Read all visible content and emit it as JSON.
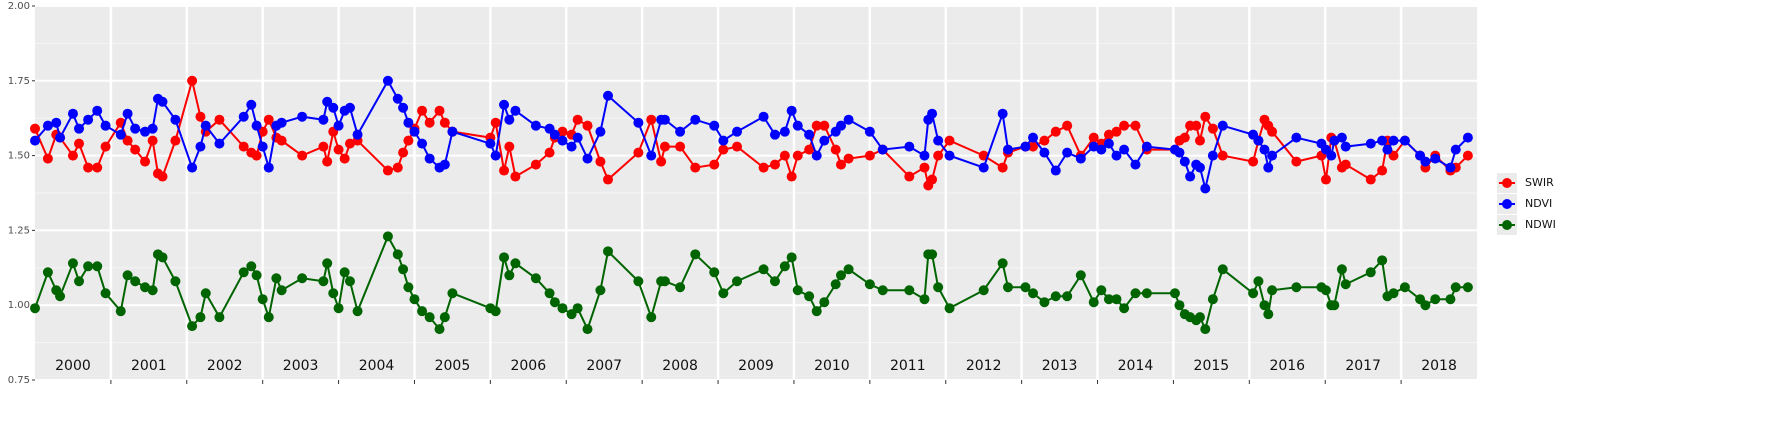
{
  "chart_data": {
    "type": "line",
    "x": [
      2000.0,
      2000.17,
      2000.28,
      2000.33,
      2000.5,
      2000.58,
      2000.7,
      2000.82,
      2000.93,
      2001.13,
      2001.22,
      2001.32,
      2001.45,
      2001.55,
      2001.62,
      2001.68,
      2001.85,
      2002.07,
      2002.18,
      2002.25,
      2002.43,
      2002.75,
      2002.85,
      2002.92,
      2003.0,
      2003.08,
      2003.18,
      2003.25,
      2003.52,
      2003.8,
      2003.85,
      2003.93,
      2004.0,
      2004.08,
      2004.15,
      2004.25,
      2004.65,
      2004.78,
      2004.85,
      2004.92,
      2005.0,
      2005.1,
      2005.2,
      2005.33,
      2005.4,
      2005.5,
      2006.0,
      2006.07,
      2006.18,
      2006.25,
      2006.33,
      2006.6,
      2006.78,
      2006.85,
      2006.95,
      2007.07,
      2007.15,
      2007.28,
      2007.45,
      2007.55,
      2007.95,
      2008.12,
      2008.25,
      2008.3,
      2008.5,
      2008.7,
      2008.95,
      2009.07,
      2009.25,
      2009.6,
      2009.75,
      2009.88,
      2009.97,
      2010.05,
      2010.2,
      2010.3,
      2010.4,
      2010.55,
      2010.62,
      2010.72,
      2011.0,
      2011.17,
      2011.52,
      2011.72,
      2011.77,
      2011.82,
      2011.9,
      2012.05,
      2012.5,
      2012.75,
      2012.82,
      2013.05,
      2013.15,
      2013.3,
      2013.45,
      2013.6,
      2013.78,
      2013.95,
      2014.05,
      2014.15,
      2014.25,
      2014.35,
      2014.5,
      2014.65,
      2015.02,
      2015.08,
      2015.15,
      2015.22,
      2015.3,
      2015.35,
      2015.42,
      2015.52,
      2015.65,
      2016.05,
      2016.12,
      2016.2,
      2016.25,
      2016.3,
      2016.62,
      2016.95,
      2017.01,
      2017.08,
      2017.12,
      2017.22,
      2017.27,
      2017.6,
      2017.75,
      2017.82,
      2017.9,
      2018.05,
      2018.25,
      2018.32,
      2018.45,
      2018.65,
      2018.72,
      2018.88
    ],
    "series": [
      {
        "name": "SWIR",
        "color": "#ff0000",
        "values": [
          1.59,
          1.49,
          1.57,
          1.56,
          1.5,
          1.54,
          1.46,
          1.46,
          1.53,
          1.61,
          1.55,
          1.52,
          1.48,
          1.55,
          1.44,
          1.43,
          1.55,
          1.75,
          1.63,
          1.58,
          1.62,
          1.53,
          1.51,
          1.5,
          1.58,
          1.62,
          1.56,
          1.55,
          1.5,
          1.53,
          1.48,
          1.58,
          1.52,
          1.49,
          1.54,
          1.55,
          1.45,
          1.46,
          1.51,
          1.55,
          1.59,
          1.65,
          1.61,
          1.65,
          1.61,
          1.58,
          1.56,
          1.61,
          1.45,
          1.53,
          1.43,
          1.47,
          1.51,
          1.56,
          1.58,
          1.57,
          1.62,
          1.6,
          1.48,
          1.42,
          1.51,
          1.62,
          1.48,
          1.53,
          1.53,
          1.46,
          1.47,
          1.52,
          1.53,
          1.46,
          1.47,
          1.5,
          1.43,
          1.5,
          1.52,
          1.6,
          1.6,
          1.52,
          1.47,
          1.49,
          1.5,
          1.52,
          1.43,
          1.46,
          1.4,
          1.42,
          1.5,
          1.55,
          1.5,
          1.46,
          1.51,
          1.53,
          1.53,
          1.55,
          1.58,
          1.6,
          1.5,
          1.56,
          1.54,
          1.57,
          1.58,
          1.6,
          1.6,
          1.52,
          1.52,
          1.55,
          1.56,
          1.6,
          1.6,
          1.55,
          1.63,
          1.59,
          1.5,
          1.48,
          1.55,
          1.62,
          1.6,
          1.58,
          1.48,
          1.5,
          1.42,
          1.56,
          1.55,
          1.46,
          1.47,
          1.42,
          1.45,
          1.55,
          1.5,
          1.55,
          1.5,
          1.46,
          1.5,
          1.45,
          1.46,
          1.5
        ]
      },
      {
        "name": "NDVI",
        "color": "#0000ff",
        "values": [
          1.55,
          1.6,
          1.61,
          1.56,
          1.64,
          1.59,
          1.62,
          1.65,
          1.6,
          1.57,
          1.64,
          1.59,
          1.58,
          1.59,
          1.69,
          1.68,
          1.62,
          1.46,
          1.53,
          1.6,
          1.54,
          1.63,
          1.67,
          1.6,
          1.53,
          1.46,
          1.6,
          1.61,
          1.63,
          1.62,
          1.68,
          1.66,
          1.6,
          1.65,
          1.66,
          1.57,
          1.75,
          1.69,
          1.66,
          1.61,
          1.58,
          1.54,
          1.49,
          1.46,
          1.47,
          1.58,
          1.54,
          1.5,
          1.67,
          1.62,
          1.65,
          1.6,
          1.59,
          1.57,
          1.55,
          1.53,
          1.56,
          1.49,
          1.58,
          1.7,
          1.61,
          1.5,
          1.62,
          1.62,
          1.58,
          1.62,
          1.6,
          1.55,
          1.58,
          1.63,
          1.57,
          1.58,
          1.65,
          1.6,
          1.57,
          1.5,
          1.55,
          1.58,
          1.6,
          1.62,
          1.58,
          1.52,
          1.53,
          1.5,
          1.62,
          1.64,
          1.55,
          1.5,
          1.46,
          1.64,
          1.52,
          1.53,
          1.56,
          1.51,
          1.45,
          1.51,
          1.49,
          1.53,
          1.52,
          1.54,
          1.5,
          1.52,
          1.47,
          1.53,
          1.52,
          1.51,
          1.48,
          1.43,
          1.47,
          1.46,
          1.39,
          1.5,
          1.6,
          1.57,
          1.55,
          1.52,
          1.46,
          1.5,
          1.56,
          1.54,
          1.52,
          1.5,
          1.55,
          1.56,
          1.53,
          1.54,
          1.55,
          1.52,
          1.55,
          1.55,
          1.5,
          1.48,
          1.49,
          1.46,
          1.52,
          1.56
        ]
      },
      {
        "name": "NDWI",
        "color": "#006400",
        "values": [
          0.99,
          1.11,
          1.05,
          1.03,
          1.14,
          1.08,
          1.13,
          1.13,
          1.04,
          0.98,
          1.1,
          1.08,
          1.06,
          1.05,
          1.17,
          1.16,
          1.08,
          0.93,
          0.96,
          1.04,
          0.96,
          1.11,
          1.13,
          1.1,
          1.02,
          0.96,
          1.09,
          1.05,
          1.09,
          1.08,
          1.14,
          1.04,
          0.99,
          1.11,
          1.08,
          0.98,
          1.23,
          1.17,
          1.12,
          1.06,
          1.02,
          0.98,
          0.96,
          0.92,
          0.96,
          1.04,
          0.99,
          0.98,
          1.16,
          1.1,
          1.14,
          1.09,
          1.04,
          1.01,
          0.99,
          0.97,
          0.99,
          0.92,
          1.05,
          1.18,
          1.08,
          0.96,
          1.08,
          1.08,
          1.06,
          1.17,
          1.11,
          1.04,
          1.08,
          1.12,
          1.08,
          1.13,
          1.16,
          1.05,
          1.03,
          0.98,
          1.01,
          1.07,
          1.1,
          1.12,
          1.07,
          1.05,
          1.05,
          1.02,
          1.17,
          1.17,
          1.06,
          0.99,
          1.05,
          1.14,
          1.06,
          1.06,
          1.04,
          1.01,
          1.03,
          1.03,
          1.1,
          1.01,
          1.05,
          1.02,
          1.02,
          0.99,
          1.04,
          1.04,
          1.04,
          1.0,
          0.97,
          0.96,
          0.95,
          0.96,
          0.92,
          1.02,
          1.12,
          1.04,
          1.08,
          1.0,
          0.97,
          1.05,
          1.06,
          1.06,
          1.05,
          1.0,
          1.0,
          1.12,
          1.07,
          1.11,
          1.15,
          1.03,
          1.04,
          1.06,
          1.02,
          1.0,
          1.02,
          1.02,
          1.06,
          1.06
        ]
      }
    ],
    "categories": [
      "2000",
      "2001",
      "2002",
      "2003",
      "2004",
      "2005",
      "2006",
      "2007",
      "2008",
      "2009",
      "2010",
      "2011",
      "2012",
      "2013",
      "2014",
      "2015",
      "2016",
      "2017",
      "2018"
    ],
    "xlim": [
      2000,
      2019
    ],
    "xticks": [
      2001,
      2002,
      2003,
      2004,
      2005,
      2006,
      2007,
      2008,
      2009,
      2010,
      2011,
      2012,
      2013,
      2014,
      2015,
      2016,
      2017,
      2018
    ],
    "ylim": [
      0.75,
      2.0
    ],
    "yticks": [
      0.75,
      {
        "value": 1,
        "label": "1.00"
      },
      1.25,
      {
        "value": 1.5,
        "label": "1.50"
      },
      1.75,
      {
        "value": 2,
        "label": "2.00"
      }
    ],
    "grid": true,
    "legend": "right"
  }
}
